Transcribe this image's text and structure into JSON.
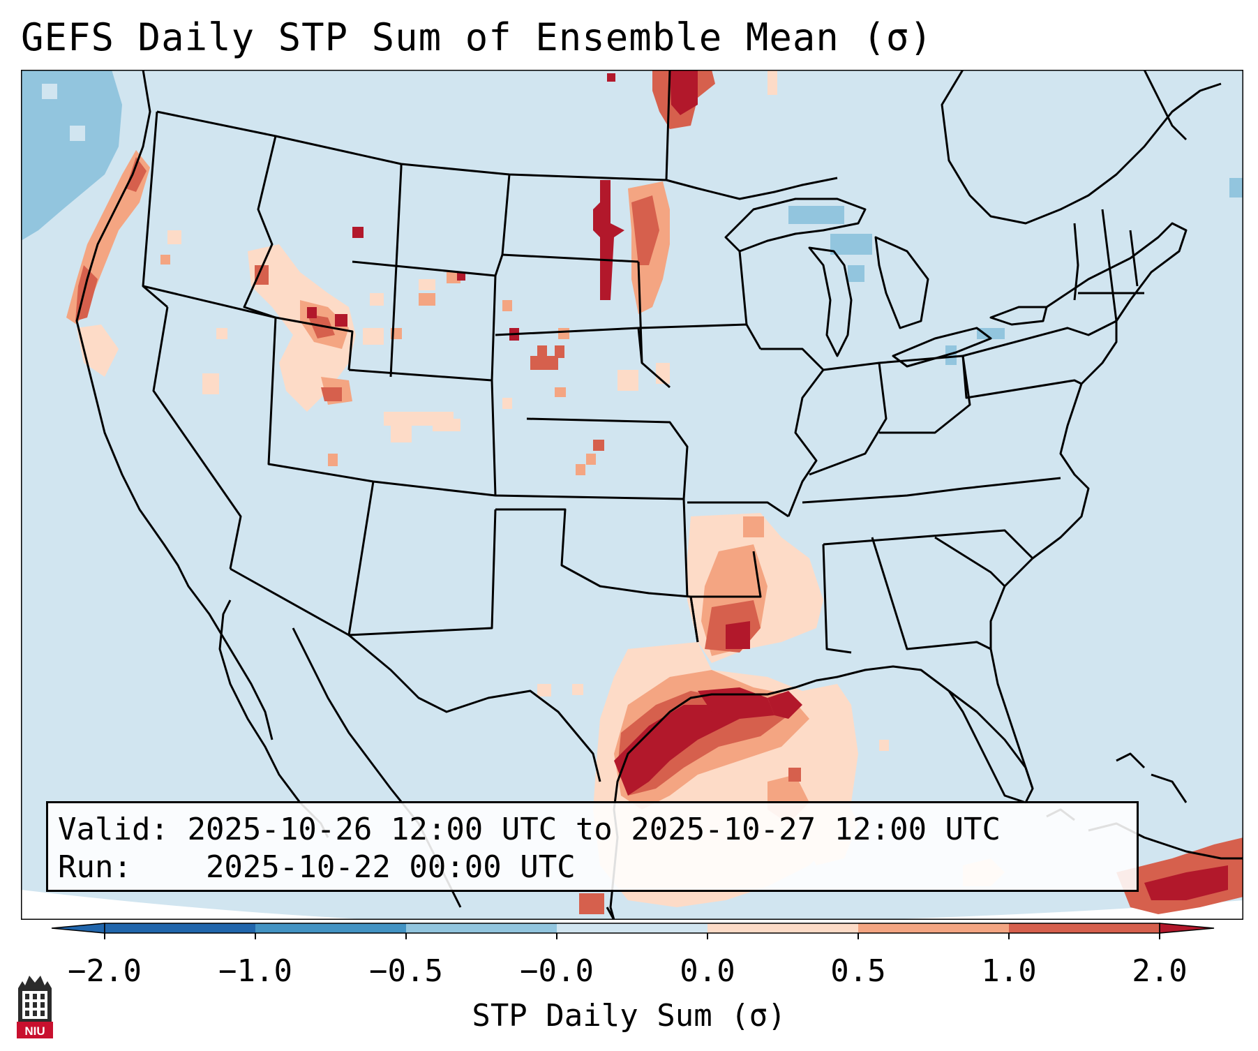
{
  "title": "GEFS Daily STP Sum of Ensemble Mean (σ)",
  "info": {
    "valid_label": "Valid:",
    "valid_value": "2025-10-26 12:00 UTC to 2025-10-27 12:00 UTC",
    "run_label": "Run:",
    "run_value": "2025-10-22 00:00 UTC"
  },
  "colorbar": {
    "label": "STP Daily Sum (σ)",
    "ticks": [
      "−2.0",
      "−1.0",
      "−0.5",
      "−0.0",
      "0.0",
      "0.5",
      "1.0",
      "2.0"
    ],
    "colors": [
      "#2166ac",
      "#4393c3",
      "#92c5de",
      "#d1e5f0",
      "#f7f7f7",
      "#fddbc7",
      "#f4a582",
      "#d6604d",
      "#b2182b"
    ]
  },
  "map": {
    "background_color": "#d1e5f0",
    "ocean_outside_color": "#ffffff",
    "line_color": "#000000"
  },
  "logo": {
    "text": "NIU",
    "icon": "niu-tower-icon"
  }
}
